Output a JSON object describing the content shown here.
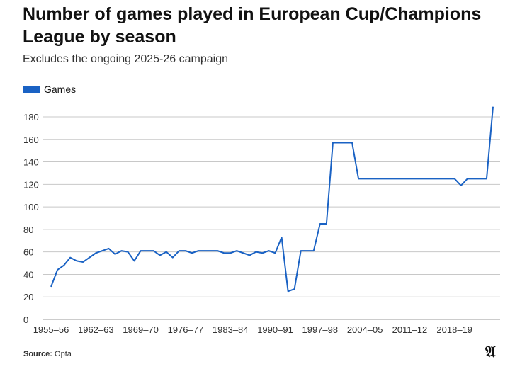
{
  "chart_data": {
    "type": "line",
    "title": "Number of games played in European Cup/Champions League by season",
    "subtitle": "Excludes the ongoing 2025-26 campaign",
    "legend": [
      "Games"
    ],
    "series_color": "#1a62c4",
    "xlabel": "",
    "ylabel": "",
    "ylim": [
      0,
      180
    ],
    "yticks": [
      0,
      20,
      40,
      60,
      80,
      100,
      120,
      140,
      160,
      180
    ],
    "xtick_labels": [
      "1955–56",
      "1962–63",
      "1969–70",
      "1976–77",
      "1983–84",
      "1990–91",
      "1997–98",
      "2004–05",
      "2011–12",
      "2018–19"
    ],
    "first_season": 1955,
    "values": [
      29,
      44,
      48,
      55,
      52,
      51,
      55,
      59,
      61,
      63,
      58,
      61,
      60,
      52,
      61,
      61,
      61,
      57,
      60,
      55,
      61,
      61,
      59,
      61,
      61,
      61,
      61,
      59,
      59,
      61,
      59,
      57,
      60,
      59,
      61,
      59,
      73,
      25,
      27,
      61,
      61,
      61,
      85,
      85,
      157,
      157,
      157,
      157,
      125,
      125,
      125,
      125,
      125,
      125,
      125,
      125,
      125,
      125,
      125,
      125,
      125,
      125,
      125,
      125,
      119,
      125,
      125,
      125,
      125,
      189
    ]
  },
  "source_label": "Source:",
  "source": "Opta",
  "logo": "A"
}
